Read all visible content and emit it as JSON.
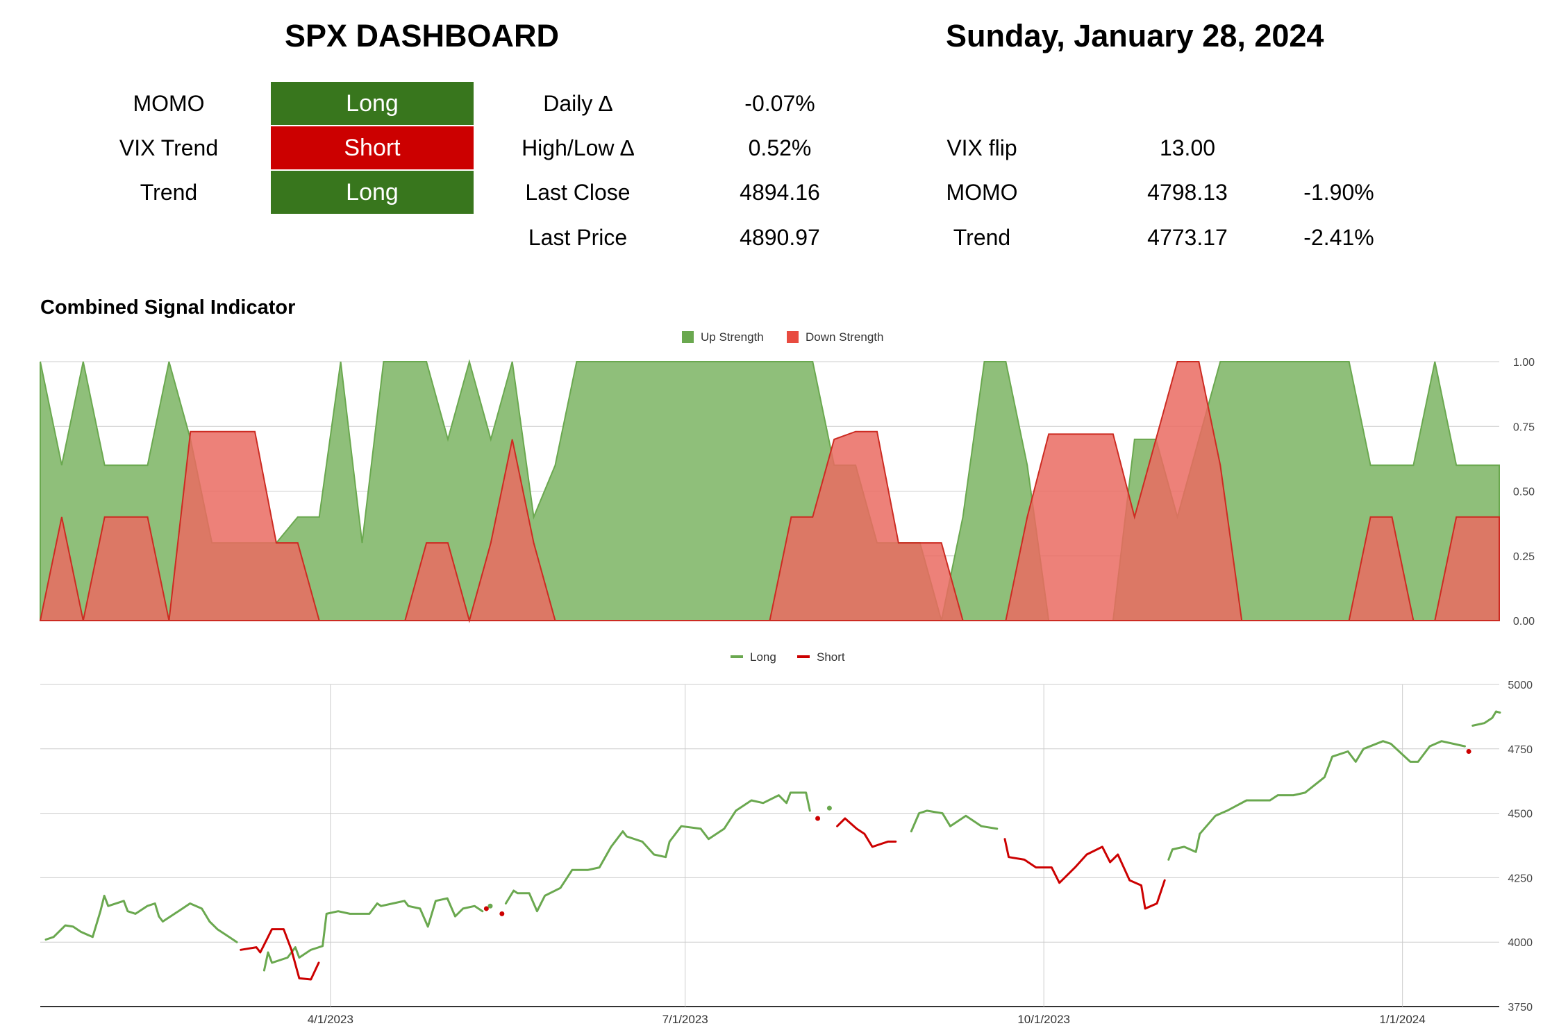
{
  "header": {
    "title": "SPX DASHBOARD",
    "date": "Sunday, January 28, 2024"
  },
  "signals": [
    {
      "label": "MOMO",
      "value": "Long",
      "color": "#38761d"
    },
    {
      "label": "VIX Trend",
      "value": "Short",
      "color": "#cc0000"
    },
    {
      "label": "Trend",
      "value": "Long",
      "color": "#38761d"
    }
  ],
  "stats": {
    "daily_delta_label": "Daily ∆",
    "daily_delta": "-0.07%",
    "high_low_label": "High/Low ∆",
    "high_low": "0.52%",
    "last_close_label": "Last Close",
    "last_close": "4894.16",
    "last_price_label": "Last Price",
    "last_price": "4890.97",
    "vix_flip_label": "VIX flip",
    "vix_flip": "13.00",
    "momo_label": "MOMO",
    "momo_level": "4798.13",
    "momo_pct": "-1.90%",
    "trend_label": "Trend",
    "trend_level": "4773.17",
    "trend_pct": "-2.41%"
  },
  "colors": {
    "long": "#38761d",
    "short": "#cc0000",
    "up_fill": "#8fbf7a",
    "down_fill": "#ea6b62",
    "line_long": "#6aa84f",
    "line_short": "#cc0000"
  },
  "chart_data": [
    {
      "type": "area",
      "title": "Combined Signal Indicator",
      "legend": [
        "Up Strength",
        "Down Strength"
      ],
      "legend_position": "top",
      "ylim": [
        0,
        1
      ],
      "yticks": [
        "1.00",
        "0.75",
        "0.50",
        "0.25",
        "0.00"
      ],
      "x_range": [
        "2023-01-18",
        "2024-01-26"
      ],
      "series": [
        {
          "name": "Up Strength",
          "values": [
            1.0,
            0.6,
            1.0,
            0.6,
            0.6,
            0.6,
            1.0,
            0.7,
            0.3,
            0.3,
            0.3,
            0.3,
            0.4,
            0.4,
            1.0,
            0.3,
            1.0,
            1.0,
            1.0,
            0.7,
            1.0,
            0.7,
            1.0,
            0.4,
            0.6,
            1.0,
            1.0,
            1.0,
            1.0,
            1.0,
            1.0,
            1.0,
            1.0,
            1.0,
            1.0,
            1.0,
            1.0,
            0.6,
            0.6,
            0.3,
            0.3,
            0.3,
            0.0,
            0.4,
            1.0,
            1.0,
            0.6,
            0.0,
            0.0,
            0.0,
            0.0,
            0.7,
            0.7,
            0.4,
            0.7,
            1.0,
            1.0,
            1.0,
            1.0,
            1.0,
            1.0,
            1.0,
            0.6,
            0.6,
            0.6,
            1.0,
            0.6,
            0.6,
            0.6
          ]
        },
        {
          "name": "Down Strength",
          "values": [
            0.0,
            0.4,
            0.0,
            0.4,
            0.4,
            0.4,
            0.0,
            0.73,
            0.73,
            0.73,
            0.73,
            0.3,
            0.3,
            0.0,
            0.0,
            0.0,
            0.0,
            0.0,
            0.3,
            0.3,
            0.0,
            0.3,
            0.7,
            0.3,
            0.0,
            0.0,
            0.0,
            0.0,
            0.0,
            0.0,
            0.0,
            0.0,
            0.0,
            0.0,
            0.0,
            0.4,
            0.4,
            0.7,
            0.73,
            0.73,
            0.3,
            0.3,
            0.3,
            0.0,
            0.0,
            0.0,
            0.4,
            0.72,
            0.72,
            0.72,
            0.72,
            0.4,
            0.7,
            1.0,
            1.0,
            0.6,
            0.0,
            0.0,
            0.0,
            0.0,
            0.0,
            0.0,
            0.4,
            0.4,
            0.0,
            0.0,
            0.4,
            0.4,
            0.4
          ]
        }
      ]
    },
    {
      "type": "line",
      "legend": [
        "Long",
        "Short"
      ],
      "legend_position": "top",
      "ylim": [
        3750,
        5000
      ],
      "yticks": [
        "5000",
        "4750",
        "4500",
        "4250",
        "4000",
        "3750"
      ],
      "xticks": [
        {
          "date": "2023-04-01",
          "label": "4/1/2023"
        },
        {
          "date": "2023-07-01",
          "label": "7/1/2023"
        },
        {
          "date": "2023-10-01",
          "label": "10/1/2023"
        },
        {
          "date": "2024-01-01",
          "label": "1/1/2024"
        }
      ],
      "x_range": [
        "2023-01-18",
        "2024-01-26"
      ],
      "series": [
        {
          "name": "Long",
          "segments": [
            [
              [
                "2023-01-18",
                4010
              ],
              [
                "2023-01-20",
                4020
              ],
              [
                "2023-01-23",
                4065
              ],
              [
                "2023-01-25",
                4060
              ],
              [
                "2023-01-27",
                4040
              ],
              [
                "2023-01-30",
                4020
              ],
              [
                "2023-02-01",
                4120
              ],
              [
                "2023-02-02",
                4180
              ],
              [
                "2023-02-03",
                4140
              ],
              [
                "2023-02-07",
                4160
              ],
              [
                "2023-02-08",
                4120
              ],
              [
                "2023-02-10",
                4110
              ],
              [
                "2023-02-13",
                4140
              ],
              [
                "2023-02-15",
                4150
              ],
              [
                "2023-02-16",
                4100
              ],
              [
                "2023-02-17",
                4080
              ],
              [
                "2023-02-21",
                4120
              ],
              [
                "2023-02-24",
                4150
              ],
              [
                "2023-02-27",
                4130
              ],
              [
                "2023-03-01",
                4080
              ],
              [
                "2023-03-03",
                4050
              ],
              [
                "2023-03-06",
                4020
              ],
              [
                "2023-03-08",
                4000
              ]
            ],
            [
              [
                "2023-03-15",
                3890
              ],
              [
                "2023-03-16",
                3960
              ],
              [
                "2023-03-17",
                3920
              ],
              [
                "2023-03-21",
                3940
              ],
              [
                "2023-03-23",
                3980
              ],
              [
                "2023-03-24",
                3940
              ],
              [
                "2023-03-27",
                3970
              ],
              [
                "2023-03-28",
                3975
              ],
              [
                "2023-03-30",
                3985
              ],
              [
                "2023-03-31",
                4110
              ],
              [
                "2023-04-03",
                4120
              ],
              [
                "2023-04-06",
                4110
              ],
              [
                "2023-04-11",
                4110
              ],
              [
                "2023-04-13",
                4150
              ],
              [
                "2023-04-14",
                4140
              ],
              [
                "2023-04-17",
                4150
              ],
              [
                "2023-04-20",
                4160
              ],
              [
                "2023-04-21",
                4140
              ],
              [
                "2023-04-24",
                4130
              ],
              [
                "2023-04-26",
                4060
              ],
              [
                "2023-04-28",
                4160
              ],
              [
                "2023-05-01",
                4170
              ],
              [
                "2023-05-03",
                4100
              ],
              [
                "2023-05-05",
                4130
              ],
              [
                "2023-05-08",
                4140
              ],
              [
                "2023-05-10",
                4120
              ]
            ],
            [
              [
                "2023-05-12",
                4140
              ]
            ],
            [
              [
                "2023-05-16",
                4150
              ],
              [
                "2023-05-18",
                4200
              ],
              [
                "2023-05-19",
                4190
              ],
              [
                "2023-05-22",
                4190
              ],
              [
                "2023-05-24",
                4120
              ],
              [
                "2023-05-26",
                4180
              ],
              [
                "2023-05-30",
                4210
              ],
              [
                "2023-06-02",
                4280
              ],
              [
                "2023-06-06",
                4280
              ],
              [
                "2023-06-09",
                4290
              ],
              [
                "2023-06-12",
                4370
              ],
              [
                "2023-06-15",
                4430
              ],
              [
                "2023-06-16",
                4410
              ],
              [
                "2023-06-20",
                4390
              ],
              [
                "2023-06-23",
                4340
              ],
              [
                "2023-06-26",
                4330
              ],
              [
                "2023-06-27",
                4390
              ],
              [
                "2023-06-30",
                4450
              ],
              [
                "2023-07-05",
                4440
              ],
              [
                "2023-07-07",
                4400
              ],
              [
                "2023-07-11",
                4440
              ],
              [
                "2023-07-14",
                4510
              ],
              [
                "2023-07-18",
                4550
              ],
              [
                "2023-07-21",
                4540
              ],
              [
                "2023-07-25",
                4570
              ],
              [
                "2023-07-27",
                4540
              ],
              [
                "2023-07-28",
                4580
              ],
              [
                "2023-08-01",
                4580
              ],
              [
                "2023-08-02",
                4510
              ]
            ],
            [
              [
                "2023-08-07",
                4520
              ]
            ],
            [
              [
                "2023-08-28",
                4430
              ],
              [
                "2023-08-30",
                4500
              ],
              [
                "2023-09-01",
                4510
              ],
              [
                "2023-09-05",
                4500
              ],
              [
                "2023-09-07",
                4450
              ],
              [
                "2023-09-11",
                4490
              ],
              [
                "2023-09-13",
                4470
              ],
              [
                "2023-09-15",
                4450
              ],
              [
                "2023-09-19",
                4440
              ]
            ],
            [
              [
                "2023-11-02",
                4320
              ],
              [
                "2023-11-03",
                4360
              ],
              [
                "2023-11-06",
                4370
              ],
              [
                "2023-11-09",
                4350
              ],
              [
                "2023-11-10",
                4420
              ],
              [
                "2023-11-14",
                4490
              ],
              [
                "2023-11-17",
                4510
              ],
              [
                "2023-11-22",
                4550
              ],
              [
                "2023-11-28",
                4550
              ],
              [
                "2023-11-30",
                4570
              ],
              [
                "2023-12-04",
                4570
              ],
              [
                "2023-12-07",
                4580
              ],
              [
                "2023-12-12",
                4640
              ],
              [
                "2023-12-14",
                4720
              ],
              [
                "2023-12-18",
                4740
              ],
              [
                "2023-12-20",
                4700
              ],
              [
                "2023-12-22",
                4750
              ],
              [
                "2023-12-27",
                4780
              ],
              [
                "2023-12-29",
                4770
              ],
              [
                "2024-01-03",
                4700
              ],
              [
                "2024-01-05",
                4700
              ],
              [
                "2024-01-08",
                4760
              ],
              [
                "2024-01-11",
                4780
              ],
              [
                "2024-01-17",
                4760
              ]
            ],
            [
              [
                "2024-01-19",
                4840
              ],
              [
                "2024-01-22",
                4850
              ],
              [
                "2024-01-24",
                4870
              ],
              [
                "2024-01-25",
                4895
              ],
              [
                "2024-01-26",
                4891
              ]
            ]
          ]
        },
        {
          "name": "Short",
          "segments": [
            [
              [
                "2023-03-09",
                3970
              ],
              [
                "2023-03-13",
                3980
              ],
              [
                "2023-03-14",
                3960
              ],
              [
                "2023-03-15",
                3990
              ],
              [
                "2023-03-17",
                4050
              ],
              [
                "2023-03-20",
                4050
              ],
              [
                "2023-03-22",
                3970
              ],
              [
                "2023-03-24",
                3860
              ],
              [
                "2023-03-27",
                3855
              ],
              [
                "2023-03-29",
                3920
              ]
            ],
            [
              [
                "2023-05-11",
                4130
              ]
            ],
            [
              [
                "2023-05-15",
                4110
              ]
            ],
            [
              [
                "2023-08-04",
                4480
              ]
            ],
            [
              [
                "2023-08-09",
                4450
              ],
              [
                "2023-08-11",
                4480
              ],
              [
                "2023-08-14",
                4440
              ],
              [
                "2023-08-16",
                4420
              ],
              [
                "2023-08-18",
                4370
              ],
              [
                "2023-08-22",
                4390
              ],
              [
                "2023-08-24",
                4390
              ]
            ],
            [
              [
                "2023-09-21",
                4400
              ],
              [
                "2023-09-22",
                4330
              ],
              [
                "2023-09-26",
                4320
              ],
              [
                "2023-09-29",
                4290
              ],
              [
                "2023-10-03",
                4290
              ],
              [
                "2023-10-05",
                4230
              ],
              [
                "2023-10-09",
                4290
              ],
              [
                "2023-10-12",
                4340
              ],
              [
                "2023-10-16",
                4370
              ],
              [
                "2023-10-18",
                4310
              ],
              [
                "2023-10-20",
                4340
              ],
              [
                "2023-10-23",
                4240
              ],
              [
                "2023-10-26",
                4220
              ],
              [
                "2023-10-27",
                4130
              ],
              [
                "2023-10-30",
                4150
              ],
              [
                "2023-11-01",
                4240
              ]
            ],
            [
              [
                "2024-01-18",
                4740
              ]
            ]
          ]
        }
      ]
    }
  ]
}
